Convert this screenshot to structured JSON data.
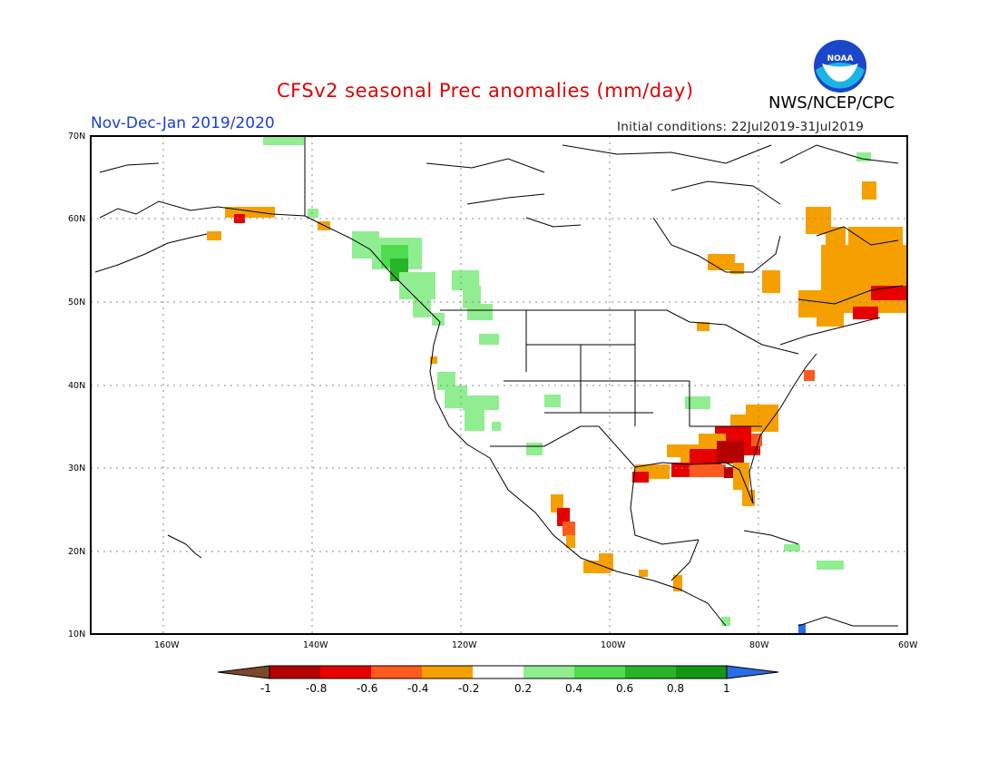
{
  "header": {
    "title": "CFSv2 seasonal Prec anomalies (mm/day)",
    "period": "Nov-Dec-Jan 2019/2020",
    "initial_conditions": "Initial conditions: 22Jul2019-31Jul2019",
    "agency": "NWS/NCEP/CPC",
    "logo_text": "NOAA"
  },
  "map": {
    "lat_labels": [
      "70N",
      "60N",
      "50N",
      "40N",
      "30N",
      "20N",
      "10N"
    ],
    "lon_labels": [
      "160W",
      "140W",
      "120W",
      "100W",
      "80W",
      "60W"
    ]
  },
  "colorbar": {
    "labels": [
      "-1",
      "-0.8",
      "-0.6",
      "-0.4",
      "-0.2",
      "0.2",
      "0.4",
      "0.6",
      "0.8",
      "1"
    ],
    "colors": [
      "#7a4a2a",
      "#b40000",
      "#e60000",
      "#ff5a1e",
      "#f5a000",
      "#ffffff",
      "#90ee90",
      "#50dc50",
      "#28b428",
      "#149614",
      "#2a6ee6"
    ]
  },
  "anomaly_regions": [
    {
      "name": "southeast-us",
      "sign": "negative"
    },
    {
      "name": "eastern-canada",
      "sign": "negative"
    },
    {
      "name": "pacific-northwest-coast",
      "sign": "positive"
    },
    {
      "name": "southern-alaska",
      "sign": "negative"
    },
    {
      "name": "western-mexico",
      "sign": "negative"
    },
    {
      "name": "southwest-us",
      "sign": "positive"
    }
  ]
}
